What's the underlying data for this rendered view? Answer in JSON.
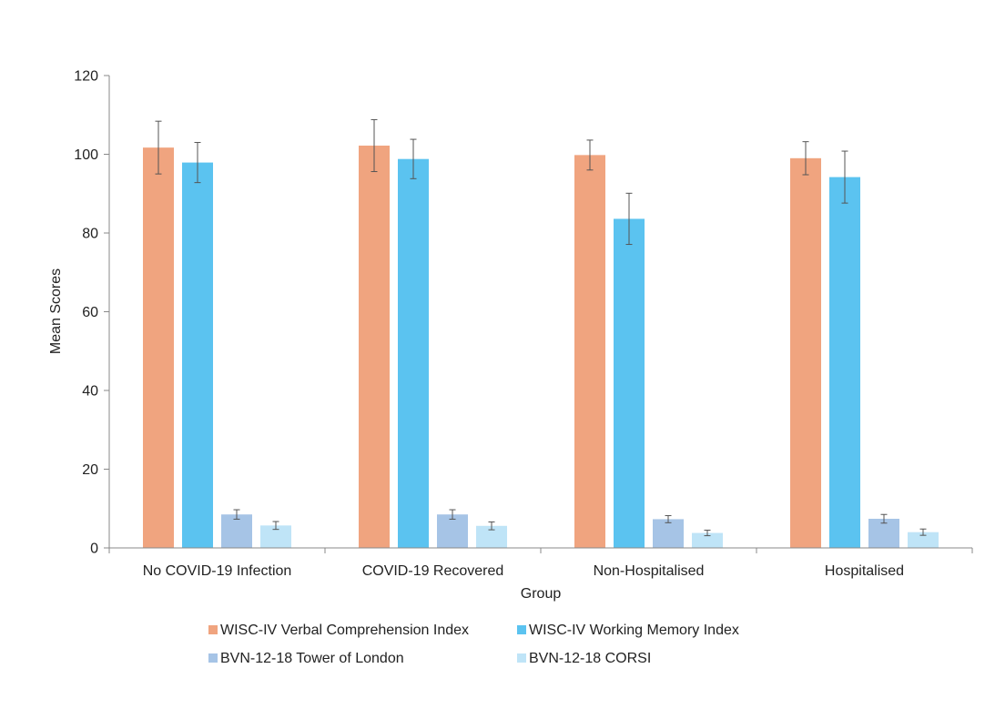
{
  "chart_data": {
    "type": "bar",
    "title": "",
    "xlabel": "Group",
    "ylabel": "Mean Scores",
    "ylim": [
      0,
      120
    ],
    "yticks": [
      0,
      20,
      40,
      60,
      80,
      100,
      120
    ],
    "grid": false,
    "legend_position": "bottom",
    "categories": [
      "No COVID-19 Infection",
      "COVID-19 Recovered",
      "Non-Hospitalised",
      "Hospitalised"
    ],
    "series": [
      {
        "name": "WISC-IV Verbal Comprehension Index",
        "color": "#F0A47F",
        "values": [
          101.7,
          102.2,
          99.8,
          99.0
        ],
        "errors": [
          6.7,
          6.6,
          3.8,
          4.2
        ]
      },
      {
        "name": "WISC-IV Working Memory Index",
        "color": "#5BC3F0",
        "values": [
          97.9,
          98.8,
          83.6,
          94.2
        ],
        "errors": [
          5.1,
          5.0,
          6.5,
          6.6
        ]
      },
      {
        "name": "BVN-12-18 Tower of London",
        "color": "#A6C4E6",
        "values": [
          8.5,
          8.5,
          7.3,
          7.4
        ],
        "errors": [
          1.2,
          1.2,
          0.9,
          1.1
        ]
      },
      {
        "name": "BVN-12-18 CORSI",
        "color": "#BFE4F7",
        "values": [
          5.7,
          5.6,
          3.8,
          4.0
        ],
        "errors": [
          1.0,
          1.0,
          0.7,
          0.8
        ]
      }
    ]
  }
}
